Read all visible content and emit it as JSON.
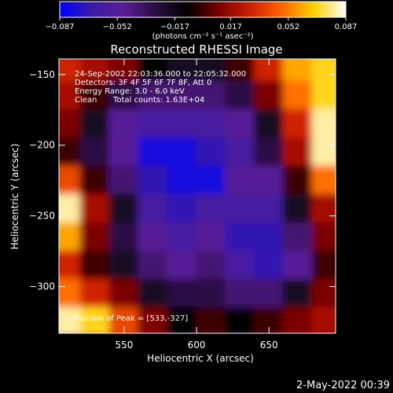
{
  "chart_data": {
    "type": "heatmap",
    "title": "Reconstructed RHESSI Image",
    "xlabel": "Heliocentric X (arcsec)",
    "ylabel": "Heliocentric Y (arcsec)",
    "xlim": [
      505,
      696
    ],
    "ylim": [
      -333,
      -139
    ],
    "xticks": [
      550,
      600,
      650
    ],
    "yticks": [
      -150,
      -200,
      -250,
      -300
    ],
    "xtick_labels": [
      "550",
      "600",
      "650"
    ],
    "ytick_labels": [
      "−150",
      "−200",
      "−250",
      "−300"
    ],
    "colorbar": {
      "range": [
        -0.087,
        0.087
      ],
      "ticks": [
        -0.087,
        -0.052,
        -0.017,
        0.017,
        0.052,
        0.087
      ],
      "tick_labels": [
        "−0.087",
        "−0.052",
        "−0.017",
        "0.017",
        "0.052",
        "0.087"
      ],
      "unit_label": "(photons cm⁻² s⁻¹ asec⁻²)"
    },
    "annotations": [
      "24-Sep-2002 22:03:36.000 to 22:05:32.000",
      "Detectors: 3F 4F 5F 6F 7F 8F, Att 0",
      "Energy Range: 3.0 - 6.0 keV",
      "Clean",
      "Total counts: 1.63E+04",
      "Position of Peak = [533,-327]"
    ],
    "peak": {
      "x": 533,
      "y": -327
    },
    "color_table": [
      "#0000ff",
      "#3a1aa6",
      "#5a1e96",
      "#2a0e40",
      "#000000",
      "#7a0000",
      "#cc2000",
      "#ff6600",
      "#ffd000",
      "#ffffff"
    ],
    "intensity_grid": {
      "x": [
        510,
        530,
        550,
        570,
        590,
        610,
        630,
        650,
        670,
        690
      ],
      "y": [
        -145,
        -165,
        -185,
        -205,
        -225,
        -245,
        -265,
        -285,
        -305,
        -325
      ],
      "values": [
        [
          0.03,
          0.02,
          0.01,
          -0.01,
          -0.02,
          -0.02,
          0.0,
          0.03,
          0.06,
          0.07
        ],
        [
          0.02,
          0.0,
          -0.03,
          -0.04,
          -0.04,
          -0.04,
          -0.03,
          0.01,
          0.05,
          0.07
        ],
        [
          0.01,
          -0.02,
          -0.05,
          -0.06,
          -0.06,
          -0.06,
          -0.05,
          -0.02,
          0.03,
          0.08
        ],
        [
          0.0,
          -0.03,
          -0.05,
          -0.08,
          -0.08,
          -0.07,
          -0.06,
          -0.03,
          0.02,
          0.08
        ],
        [
          0.04,
          0.0,
          -0.04,
          -0.07,
          -0.08,
          -0.08,
          -0.05,
          -0.05,
          0.0,
          0.05
        ],
        [
          0.08,
          0.02,
          -0.02,
          -0.06,
          -0.07,
          -0.06,
          -0.06,
          -0.06,
          -0.02,
          0.02
        ],
        [
          0.06,
          0.01,
          -0.03,
          -0.05,
          -0.06,
          -0.05,
          -0.07,
          -0.07,
          -0.04,
          0.01
        ],
        [
          0.03,
          0.0,
          -0.02,
          -0.04,
          -0.05,
          -0.04,
          -0.06,
          -0.07,
          -0.05,
          0.0
        ],
        [
          0.05,
          0.03,
          0.01,
          -0.02,
          -0.03,
          -0.03,
          -0.04,
          -0.04,
          -0.02,
          0.01
        ],
        [
          0.08,
          0.07,
          0.04,
          0.01,
          -0.01,
          0.0,
          -0.01,
          0.0,
          0.01,
          0.02
        ]
      ]
    }
  },
  "timestamp": "2-May-2022 00:39"
}
